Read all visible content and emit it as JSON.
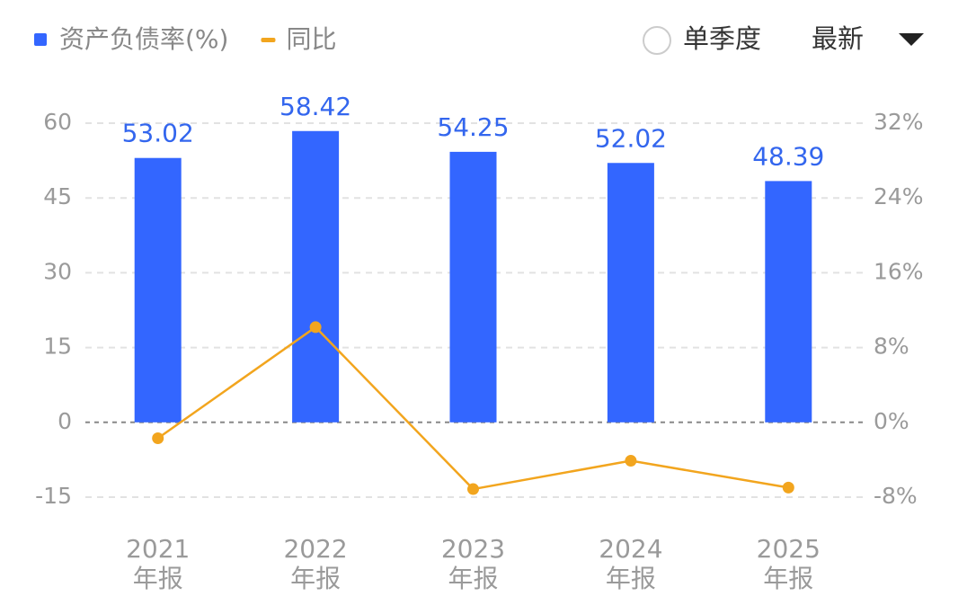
{
  "chart_data": {
    "type": "bar",
    "categories": [
      [
        "2021",
        "年报"
      ],
      [
        "2022",
        "年报"
      ],
      [
        "2023",
        "年报"
      ],
      [
        "2024",
        "年报"
      ],
      [
        "2025",
        "年报"
      ]
    ],
    "series": [
      {
        "name": "资产负债率(%)",
        "type": "bar",
        "color": "#3366ff",
        "values": [
          53.02,
          58.42,
          54.25,
          52.02,
          48.39
        ]
      },
      {
        "name": "同比",
        "type": "line",
        "axis": "y2",
        "color": "#f2a51e",
        "values": [
          -1.7,
          10.18,
          -7.14,
          -4.11,
          -6.98
        ]
      }
    ],
    "ylim": [
      -15,
      60
    ],
    "yticks": [
      60,
      45,
      30,
      15,
      0,
      -15
    ],
    "y2lim": [
      -8,
      32
    ],
    "y2ticks": [
      {
        "value": 32,
        "label": "32%"
      },
      {
        "value": 24,
        "label": "24%"
      },
      {
        "value": 16,
        "label": "16%"
      },
      {
        "value": 8,
        "label": "8%"
      },
      {
        "value": 0,
        "label": "0%"
      },
      {
        "value": -8,
        "label": "-8%"
      }
    ],
    "grid": true
  },
  "controls": {
    "quarterly": "单季度",
    "period": "最新"
  }
}
